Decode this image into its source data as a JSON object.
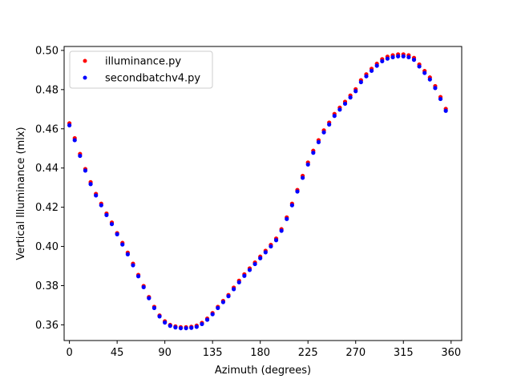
{
  "chart_data": {
    "type": "scatter",
    "title": "",
    "xlabel": "Azimuth (degrees)",
    "ylabel": "Vertical Illuminance (mlx)",
    "xlim": [
      -5,
      370
    ],
    "ylim": [
      0.352,
      0.502
    ],
    "xticks": [
      0,
      45,
      90,
      135,
      180,
      225,
      270,
      315,
      360
    ],
    "yticks": [
      0.36,
      0.38,
      0.4,
      0.42,
      0.44,
      0.46,
      0.48,
      0.5
    ],
    "ytick_labels": [
      "0.36",
      "0.38",
      "0.40",
      "0.42",
      "0.44",
      "0.46",
      "0.48",
      "0.50"
    ],
    "grid": false,
    "legend_position": "upper-left",
    "x": [
      0,
      5,
      10,
      15,
      20,
      25,
      30,
      35,
      40,
      45,
      50,
      55,
      60,
      65,
      70,
      75,
      80,
      85,
      90,
      95,
      100,
      105,
      110,
      115,
      120,
      125,
      130,
      135,
      140,
      145,
      150,
      155,
      160,
      165,
      170,
      175,
      180,
      185,
      190,
      195,
      200,
      205,
      210,
      215,
      220,
      225,
      230,
      235,
      240,
      245,
      250,
      255,
      260,
      265,
      270,
      275,
      280,
      285,
      290,
      295,
      300,
      305,
      310,
      315,
      320,
      325,
      330,
      335,
      340,
      345,
      350,
      355
    ],
    "series": [
      {
        "name": "illuminance.py",
        "color": "#ff0000",
        "values": [
          0.4628,
          0.4552,
          0.4472,
          0.4395,
          0.4328,
          0.4268,
          0.4218,
          0.4168,
          0.4122,
          0.4068,
          0.4018,
          0.3968,
          0.3912,
          0.3855,
          0.3798,
          0.3742,
          0.3692,
          0.3648,
          0.3618,
          0.36,
          0.3592,
          0.3588,
          0.3588,
          0.359,
          0.3596,
          0.361,
          0.3632,
          0.366,
          0.3692,
          0.3722,
          0.3752,
          0.379,
          0.3825,
          0.3858,
          0.3888,
          0.3918,
          0.3948,
          0.3978,
          0.4008,
          0.404,
          0.4088,
          0.4148,
          0.4218,
          0.4288,
          0.436,
          0.4428,
          0.4488,
          0.4542,
          0.4592,
          0.4632,
          0.4676,
          0.4708,
          0.4738,
          0.477,
          0.4802,
          0.4848,
          0.4878,
          0.4906,
          0.4932,
          0.4955,
          0.4968,
          0.4975,
          0.498,
          0.498,
          0.4975,
          0.4962,
          0.4928,
          0.4895,
          0.4862,
          0.4818,
          0.4762,
          0.4702
        ]
      },
      {
        "name": "secondbatchv4.py",
        "color": "#0000ff",
        "values": [
          0.4618,
          0.4542,
          0.4462,
          0.4387,
          0.4318,
          0.426,
          0.421,
          0.416,
          0.4114,
          0.4062,
          0.401,
          0.396,
          0.3904,
          0.3848,
          0.3792,
          0.3736,
          0.3686,
          0.3643,
          0.3612,
          0.3595,
          0.3587,
          0.3583,
          0.3583,
          0.3585,
          0.359,
          0.3604,
          0.3626,
          0.3654,
          0.3686,
          0.3716,
          0.3746,
          0.3782,
          0.3817,
          0.385,
          0.388,
          0.391,
          0.394,
          0.397,
          0.4,
          0.4032,
          0.408,
          0.414,
          0.421,
          0.428,
          0.435,
          0.4418,
          0.4478,
          0.4532,
          0.4582,
          0.4622,
          0.4666,
          0.4698,
          0.4728,
          0.476,
          0.4792,
          0.4838,
          0.4868,
          0.4896,
          0.4922,
          0.4945,
          0.4958,
          0.4965,
          0.497,
          0.497,
          0.4965,
          0.4952,
          0.4918,
          0.4885,
          0.4852,
          0.4808,
          0.4752,
          0.4692
        ]
      }
    ]
  }
}
